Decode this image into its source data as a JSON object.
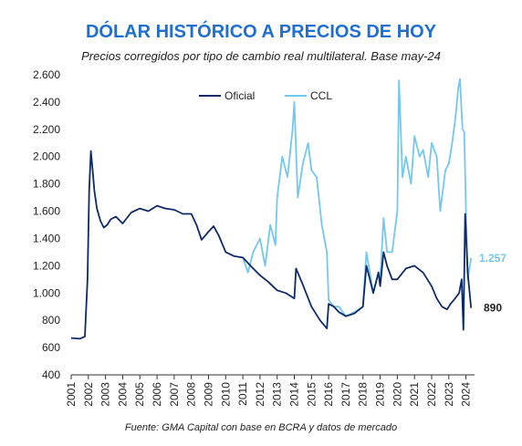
{
  "chart_data": {
    "type": "line",
    "title": "DÓLAR HISTÓRICO A PRECIOS DE HOY",
    "subtitle": "Precios corregidos por tipo de cambio real multilateral. Base may-24",
    "source": "Fuente: GMA Capital con base en BCRA y datos de mercado",
    "ylim": [
      400,
      2600
    ],
    "xlim": [
      2001.0,
      2024.5
    ],
    "grid": false,
    "legend_position": "top-center",
    "yticks": [
      400,
      600,
      800,
      1000,
      1200,
      1400,
      1600,
      1800,
      2000,
      2200,
      2400,
      2600
    ],
    "ytick_labels": [
      "400",
      "600",
      "800",
      "1.000",
      "1.200",
      "1.400",
      "1.600",
      "1.800",
      "2.000",
      "2.200",
      "2.400",
      "2.600"
    ],
    "xtick_labels": [
      "2001",
      "2002",
      "2003",
      "2004",
      "2005",
      "2006",
      "2007",
      "2008",
      "2009",
      "2010",
      "2011",
      "2012",
      "2013",
      "2014",
      "2015",
      "2016",
      "2017",
      "2018",
      "2019",
      "2020",
      "2021",
      "2022",
      "2023",
      "2024"
    ],
    "series": [
      {
        "name": "Oficial",
        "color": "#0d2a66",
        "end_label": "890",
        "x": [
          2001.0,
          2001.5,
          2001.8,
          2001.95,
          2002.05,
          2002.15,
          2002.25,
          2002.35,
          2002.5,
          2002.7,
          2002.9,
          2003.1,
          2003.3,
          2003.6,
          2004.0,
          2004.5,
          2005.0,
          2005.5,
          2006.0,
          2006.5,
          2007.0,
          2007.5,
          2008.0,
          2008.3,
          2008.6,
          2009.0,
          2009.3,
          2009.6,
          2010.0,
          2010.5,
          2011.0,
          2011.3,
          2011.6,
          2012.0,
          2012.5,
          2013.0,
          2013.5,
          2014.0,
          2014.1,
          2014.5,
          2015.0,
          2015.5,
          2015.9,
          2016.0,
          2016.3,
          2016.6,
          2017.0,
          2017.5,
          2018.0,
          2018.2,
          2018.4,
          2018.6,
          2018.9,
          2019.0,
          2019.2,
          2019.4,
          2019.7,
          2020.0,
          2020.5,
          2021.0,
          2021.5,
          2022.0,
          2022.3,
          2022.6,
          2022.9,
          2023.1,
          2023.3,
          2023.6,
          2023.75,
          2023.85,
          2023.95,
          2024.1,
          2024.3
        ],
        "y": [
          670,
          665,
          680,
          1100,
          1750,
          2040,
          1900,
          1750,
          1620,
          1530,
          1480,
          1500,
          1540,
          1560,
          1510,
          1590,
          1620,
          1600,
          1640,
          1620,
          1610,
          1580,
          1580,
          1500,
          1390,
          1450,
          1490,
          1420,
          1300,
          1270,
          1260,
          1220,
          1180,
          1130,
          1080,
          1020,
          1000,
          960,
          1180,
          1060,
          900,
          800,
          740,
          920,
          900,
          860,
          830,
          850,
          900,
          1200,
          1100,
          1000,
          1150,
          1050,
          1300,
          1200,
          1100,
          1100,
          1180,
          1200,
          1150,
          1050,
          960,
          900,
          880,
          920,
          950,
          1000,
          1100,
          730,
          1580,
          1150,
          890
        ]
      },
      {
        "name": "CCL",
        "color": "#74c7ee",
        "end_label": "1.257",
        "x": [
          2011.0,
          2011.3,
          2011.6,
          2012.0,
          2012.3,
          2012.6,
          2012.9,
          2013.0,
          2013.3,
          2013.6,
          2013.9,
          2014.0,
          2014.2,
          2014.5,
          2014.8,
          2015.0,
          2015.3,
          2015.6,
          2015.9,
          2016.0,
          2016.3,
          2016.6,
          2017.0,
          2017.5,
          2018.0,
          2018.2,
          2018.4,
          2018.6,
          2018.9,
          2019.0,
          2019.2,
          2019.4,
          2019.7,
          2020.0,
          2020.1,
          2020.3,
          2020.5,
          2020.8,
          2021.0,
          2021.3,
          2021.5,
          2021.8,
          2022.0,
          2022.3,
          2022.5,
          2022.8,
          2023.0,
          2023.2,
          2023.4,
          2023.55,
          2023.65,
          2023.8,
          2023.9,
          2024.0,
          2024.1,
          2024.3
        ],
        "y": [
          1260,
          1150,
          1300,
          1400,
          1200,
          1500,
          1350,
          1700,
          2000,
          1850,
          2200,
          2400,
          1700,
          1950,
          2100,
          1900,
          1850,
          1500,
          1300,
          950,
          900,
          900,
          830,
          860,
          900,
          1300,
          1150,
          1000,
          1150,
          1100,
          1550,
          1300,
          1300,
          1600,
          2560,
          1850,
          2000,
          1800,
          2150,
          2000,
          2050,
          1850,
          2100,
          2000,
          1600,
          1900,
          1950,
          2100,
          2300,
          2500,
          2570,
          2200,
          2180,
          1600,
          1100,
          1257
        ]
      }
    ]
  }
}
